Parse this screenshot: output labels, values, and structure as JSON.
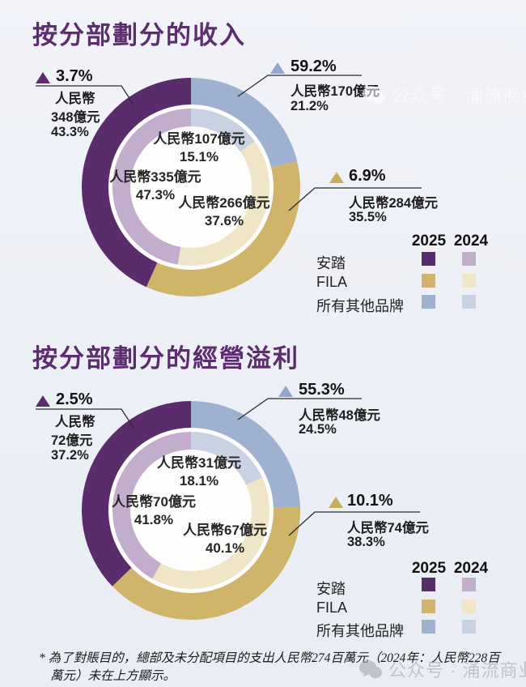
{
  "page_bg": "#edf0f6",
  "accent_title_color": "#5c2e70",
  "legend": {
    "col_2025": "2025",
    "col_2024": "2024",
    "rows": [
      {
        "label": "安踏",
        "c2025": "#5b2c6c",
        "c2024": "#c2adcc"
      },
      {
        "label": "FILA",
        "c2025": "#cfb469",
        "c2024": "#f0e5c6"
      },
      {
        "label": "所有其他品牌",
        "c2025": "#9fb1d1",
        "c2024": "#c8d2e2"
      }
    ]
  },
  "footnote": "* 為了對賬目的，總部及未分配項目的支出人民幣274百萬元（2024年：人民幣228百萬元）未在上方顯示。",
  "watermark": {
    "text": "公众号 · 涌流商业"
  },
  "chart_data": [
    {
      "type": "donut",
      "title": "按分部劃分的收入",
      "unit": "人民幣億元",
      "legend_position": "right",
      "rings": [
        {
          "year": "2025",
          "position": "outer",
          "segments": [
            {
              "name": "所有其他品牌",
              "value_yi": 170,
              "share_pct": 21.2,
              "yoy_change_pct": 59.2,
              "color": "#9fb1d1"
            },
            {
              "name": "FILA",
              "value_yi": 284,
              "share_pct": 35.5,
              "yoy_change_pct": 6.9,
              "color": "#cfb469"
            },
            {
              "name": "安踏",
              "value_yi": 348,
              "share_pct": 43.3,
              "yoy_change_pct": 3.7,
              "color": "#5b2c6c"
            }
          ]
        },
        {
          "year": "2024",
          "position": "inner",
          "segments": [
            {
              "name": "所有其他品牌",
              "value_yi": 107,
              "share_pct": 15.1,
              "color": "#c8d2e2"
            },
            {
              "name": "FILA",
              "value_yi": 266,
              "share_pct": 37.6,
              "color": "#f0e5c6"
            },
            {
              "name": "安踏",
              "value_yi": 335,
              "share_pct": 47.3,
              "color": "#c2adcc"
            }
          ]
        }
      ],
      "callouts": {
        "left": {
          "pct": "3.7%",
          "line1": "人民幣",
          "line2": "348億元",
          "line3": "43.3%",
          "color": "#5b2c6c"
        },
        "right_top": {
          "pct": "59.2%",
          "line1": "人民幣170億元",
          "line2": "21.2%",
          "color": "#92a7cb"
        },
        "right_bottom": {
          "pct": "6.9%",
          "line1": "人民幣284億元",
          "line2": "35.5%",
          "color": "#c9ac5e"
        }
      },
      "inner_labels": [
        {
          "line1": "人民幣107億元",
          "line2": "15.1%"
        },
        {
          "line1": "人民幣335億元",
          "line2": "47.3%"
        },
        {
          "line1": "人民幣266億元",
          "line2": "37.6%"
        }
      ]
    },
    {
      "type": "donut",
      "title": "按分部劃分的經營溢利",
      "unit": "人民幣億元",
      "legend_position": "right",
      "rings": [
        {
          "year": "2025",
          "position": "outer",
          "segments": [
            {
              "name": "所有其他品牌",
              "value_yi": 48,
              "share_pct": 24.5,
              "yoy_change_pct": 55.3,
              "color": "#9fb1d1"
            },
            {
              "name": "FILA",
              "value_yi": 74,
              "share_pct": 38.3,
              "yoy_change_pct": 10.1,
              "color": "#cfb469"
            },
            {
              "name": "安踏",
              "value_yi": 72,
              "share_pct": 37.2,
              "yoy_change_pct": 2.5,
              "color": "#5b2c6c"
            }
          ]
        },
        {
          "year": "2024",
          "position": "inner",
          "segments": [
            {
              "name": "所有其他品牌",
              "value_yi": 31,
              "share_pct": 18.1,
              "color": "#c8d2e2"
            },
            {
              "name": "FILA",
              "value_yi": 67,
              "share_pct": 40.1,
              "color": "#f0e5c6"
            },
            {
              "name": "安踏",
              "value_yi": 70,
              "share_pct": 41.8,
              "color": "#c2adcc"
            }
          ]
        }
      ],
      "callouts": {
        "left": {
          "pct": "2.5%",
          "line1": "人民幣",
          "line2": "72億元",
          "line3": "37.2%",
          "color": "#5b2c6c"
        },
        "right_top": {
          "pct": "55.3%",
          "line1": "人民幣48億元",
          "line2": "24.5%",
          "color": "#92a7cb"
        },
        "right_bottom": {
          "pct": "10.1%",
          "line1": "人民幣74億元",
          "line2": "38.3%",
          "color": "#c9ac5e"
        }
      },
      "inner_labels": [
        {
          "line1": "人民幣31億元",
          "line2": "18.1%"
        },
        {
          "line1": "人民幣70億元",
          "line2": "41.8%"
        },
        {
          "line1": "人民幣67億元",
          "line2": "40.1%"
        }
      ]
    }
  ]
}
